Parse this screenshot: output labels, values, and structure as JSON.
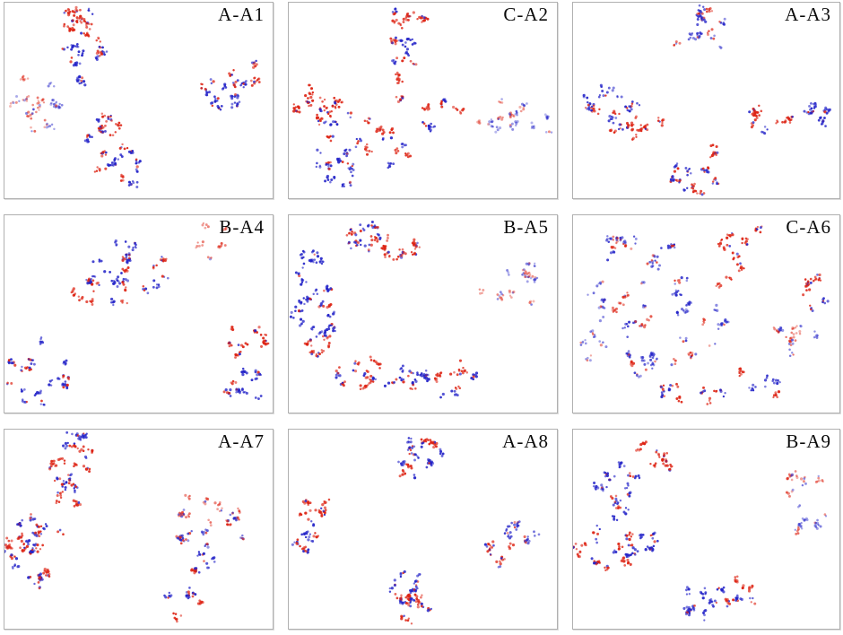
{
  "chart_data": {
    "type": "scatter",
    "title": "",
    "description": "3x3 grid of 2D embedding scatter plots, each panel comparing two point classes (red vs blue); no axes, ticks or legends are shown",
    "layout": {
      "rows": 3,
      "cols": 3,
      "grid": "off",
      "axes": "hidden",
      "legend": "none"
    },
    "colors": {
      "red_points": "#dd2212",
      "blue_points": "#2323c8",
      "panel_border": "#b0b0b0",
      "label_text": "#0a0a0a",
      "background": "#ffffff"
    },
    "point_style": {
      "radius_px": 1.4,
      "default_alpha": [
        0.55,
        0.95
      ]
    },
    "panels": [
      {
        "label": "A-A1",
        "clusters": [
          {
            "x": 0.27,
            "y": 0.08,
            "rx": 0.08,
            "ry": 0.07,
            "red": 48,
            "blue": 16
          },
          {
            "x": 0.29,
            "y": 0.24,
            "rx": 0.09,
            "ry": 0.09,
            "red": 16,
            "blue": 42
          },
          {
            "x": 0.27,
            "y": 0.4,
            "rx": 0.03,
            "ry": 0.05,
            "red": 0,
            "blue": 14
          },
          {
            "x": 0.08,
            "y": 0.52,
            "rx": 0.08,
            "ry": 0.14,
            "red": 34,
            "blue": 6,
            "a": [
              0.3,
              0.6
            ]
          },
          {
            "x": 0.17,
            "y": 0.5,
            "rx": 0.08,
            "ry": 0.14,
            "red": 8,
            "blue": 34,
            "a": [
              0.3,
              0.6
            ]
          },
          {
            "x": 0.36,
            "y": 0.66,
            "rx": 0.09,
            "ry": 0.08,
            "red": 44,
            "blue": 8
          },
          {
            "x": 0.43,
            "y": 0.84,
            "rx": 0.09,
            "ry": 0.11,
            "red": 16,
            "blue": 56
          },
          {
            "x": 0.9,
            "y": 0.36,
            "rx": 0.08,
            "ry": 0.09,
            "red": 36,
            "blue": 6
          },
          {
            "x": 0.8,
            "y": 0.48,
            "rx": 0.08,
            "ry": 0.09,
            "red": 8,
            "blue": 44
          }
        ]
      },
      {
        "label": "C-A2",
        "clusters": [
          {
            "x": 0.44,
            "y": 0.07,
            "rx": 0.07,
            "ry": 0.06,
            "red": 38,
            "blue": 6
          },
          {
            "x": 0.43,
            "y": 0.24,
            "rx": 0.05,
            "ry": 0.11,
            "red": 16,
            "blue": 30
          },
          {
            "x": 0.42,
            "y": 0.44,
            "rx": 0.04,
            "ry": 0.07,
            "red": 12,
            "blue": 10
          },
          {
            "x": 0.08,
            "y": 0.52,
            "rx": 0.06,
            "ry": 0.12,
            "red": 38,
            "blue": 5
          },
          {
            "x": 0.21,
            "y": 0.6,
            "rx": 0.1,
            "ry": 0.12,
            "red": 28,
            "blue": 42
          },
          {
            "x": 0.19,
            "y": 0.83,
            "rx": 0.12,
            "ry": 0.12,
            "red": 12,
            "blue": 52
          },
          {
            "x": 0.37,
            "y": 0.76,
            "rx": 0.08,
            "ry": 0.12,
            "red": 28,
            "blue": 24
          },
          {
            "x": 0.58,
            "y": 0.58,
            "rx": 0.09,
            "ry": 0.09,
            "red": 28,
            "blue": 18
          },
          {
            "x": 0.75,
            "y": 0.6,
            "rx": 0.09,
            "ry": 0.11,
            "red": 22,
            "blue": 16,
            "a": [
              0.3,
              0.55
            ]
          },
          {
            "x": 0.91,
            "y": 0.61,
            "rx": 0.08,
            "ry": 0.12,
            "red": 8,
            "blue": 30,
            "a": [
              0.3,
              0.55
            ]
          }
        ]
      },
      {
        "label": "A-A3",
        "clusters": [
          {
            "x": 0.47,
            "y": 0.13,
            "rx": 0.12,
            "ry": 0.12,
            "red": 38,
            "blue": 38,
            "a": [
              0.45,
              0.8
            ]
          },
          {
            "x": 0.14,
            "y": 0.49,
            "rx": 0.12,
            "ry": 0.09,
            "red": 14,
            "blue": 44
          },
          {
            "x": 0.17,
            "y": 0.63,
            "rx": 0.11,
            "ry": 0.07,
            "red": 40,
            "blue": 10
          },
          {
            "x": 0.3,
            "y": 0.62,
            "rx": 0.04,
            "ry": 0.04,
            "red": 12,
            "blue": 0
          },
          {
            "x": 0.73,
            "y": 0.6,
            "rx": 0.11,
            "ry": 0.06,
            "red": 38,
            "blue": 8
          },
          {
            "x": 0.92,
            "y": 0.57,
            "rx": 0.07,
            "ry": 0.09,
            "red": 6,
            "blue": 36
          },
          {
            "x": 0.52,
            "y": 0.76,
            "rx": 0.04,
            "ry": 0.04,
            "red": 14,
            "blue": 0
          },
          {
            "x": 0.46,
            "y": 0.89,
            "rx": 0.09,
            "ry": 0.09,
            "red": 20,
            "blue": 46
          }
        ]
      },
      {
        "label": "B-A4",
        "clusters": [
          {
            "x": 0.46,
            "y": 0.27,
            "rx": 0.18,
            "ry": 0.18,
            "red": 50,
            "blue": 78
          },
          {
            "x": 0.3,
            "y": 0.4,
            "rx": 0.05,
            "ry": 0.05,
            "red": 16,
            "blue": 2
          },
          {
            "x": 0.78,
            "y": 0.12,
            "rx": 0.07,
            "ry": 0.11,
            "red": 28,
            "blue": 0,
            "a": [
              0.35,
              0.6
            ]
          },
          {
            "x": 0.12,
            "y": 0.79,
            "rx": 0.12,
            "ry": 0.17,
            "red": 38,
            "blue": 48
          },
          {
            "x": 0.91,
            "y": 0.63,
            "rx": 0.09,
            "ry": 0.09,
            "red": 44,
            "blue": 4
          },
          {
            "x": 0.9,
            "y": 0.87,
            "rx": 0.09,
            "ry": 0.11,
            "red": 4,
            "blue": 50
          }
        ]
      },
      {
        "label": "B-A5",
        "clusters": [
          {
            "x": 0.27,
            "y": 0.1,
            "rx": 0.08,
            "ry": 0.08,
            "red": 10,
            "blue": 40
          },
          {
            "x": 0.4,
            "y": 0.18,
            "rx": 0.1,
            "ry": 0.1,
            "red": 44,
            "blue": 12
          },
          {
            "x": 0.08,
            "y": 0.28,
            "rx": 0.07,
            "ry": 0.09,
            "red": 0,
            "blue": 40
          },
          {
            "x": 0.12,
            "y": 0.4,
            "rx": 0.06,
            "ry": 0.06,
            "red": 4,
            "blue": 25
          },
          {
            "x": 0.05,
            "y": 0.48,
            "rx": 0.04,
            "ry": 0.07,
            "red": 2,
            "blue": 25
          },
          {
            "x": 0.15,
            "y": 0.56,
            "rx": 0.06,
            "ry": 0.06,
            "red": 10,
            "blue": 24
          },
          {
            "x": 0.11,
            "y": 0.68,
            "rx": 0.05,
            "ry": 0.08,
            "red": 30,
            "blue": 2
          },
          {
            "x": 0.27,
            "y": 0.8,
            "rx": 0.1,
            "ry": 0.08,
            "red": 40,
            "blue": 16
          },
          {
            "x": 0.45,
            "y": 0.84,
            "rx": 0.09,
            "ry": 0.08,
            "red": 18,
            "blue": 26
          },
          {
            "x": 0.61,
            "y": 0.84,
            "rx": 0.09,
            "ry": 0.1,
            "red": 30,
            "blue": 22
          },
          {
            "x": 0.77,
            "y": 0.42,
            "rx": 0.06,
            "ry": 0.08,
            "red": 18,
            "blue": 2,
            "a": [
              0.3,
              0.55
            ]
          },
          {
            "x": 0.88,
            "y": 0.35,
            "rx": 0.08,
            "ry": 0.12,
            "red": 4,
            "blue": 36,
            "a": [
              0.3,
              0.6
            ]
          }
        ]
      },
      {
        "label": "C-A6",
        "clusters": [
          {
            "x": 0.63,
            "y": 0.15,
            "rx": 0.09,
            "ry": 0.13,
            "red": 48,
            "blue": 2
          },
          {
            "x": 0.56,
            "y": 0.34,
            "rx": 0.03,
            "ry": 0.03,
            "red": 10,
            "blue": 0
          },
          {
            "x": 0.93,
            "y": 0.38,
            "rx": 0.06,
            "ry": 0.11,
            "red": 34,
            "blue": 2
          },
          {
            "x": 0.14,
            "y": 0.22,
            "rx": 0.1,
            "ry": 0.12,
            "red": 8,
            "blue": 30,
            "a": [
              0.4,
              0.9
            ]
          },
          {
            "x": 0.3,
            "y": 0.17,
            "rx": 0.08,
            "ry": 0.1,
            "red": 6,
            "blue": 25,
            "a": [
              0.4,
              0.9
            ]
          },
          {
            "x": 0.1,
            "y": 0.45,
            "rx": 0.09,
            "ry": 0.12,
            "red": 5,
            "blue": 24,
            "a": [
              0.35,
              0.7
            ]
          },
          {
            "x": 0.25,
            "y": 0.45,
            "rx": 0.1,
            "ry": 0.14,
            "red": 8,
            "blue": 30,
            "a": [
              0.4,
              0.9
            ]
          },
          {
            "x": 0.4,
            "y": 0.36,
            "rx": 0.08,
            "ry": 0.14,
            "red": 8,
            "blue": 28,
            "a": [
              0.4,
              0.9
            ]
          },
          {
            "x": 0.07,
            "y": 0.7,
            "rx": 0.06,
            "ry": 0.12,
            "red": 2,
            "blue": 20,
            "a": [
              0.35,
              0.65
            ]
          },
          {
            "x": 0.22,
            "y": 0.72,
            "rx": 0.09,
            "ry": 0.12,
            "red": 8,
            "blue": 25,
            "a": [
              0.4,
              0.9
            ]
          },
          {
            "x": 0.38,
            "y": 0.7,
            "rx": 0.08,
            "ry": 0.12,
            "red": 10,
            "blue": 22,
            "a": [
              0.4,
              0.9
            ]
          },
          {
            "x": 0.52,
            "y": 0.55,
            "rx": 0.06,
            "ry": 0.12,
            "red": 8,
            "blue": 15,
            "a": [
              0.4,
              0.8
            ]
          },
          {
            "x": 0.42,
            "y": 0.9,
            "rx": 0.12,
            "ry": 0.07,
            "red": 15,
            "blue": 20
          },
          {
            "x": 0.6,
            "y": 0.85,
            "rx": 0.08,
            "ry": 0.08,
            "red": 10,
            "blue": 15
          },
          {
            "x": 0.78,
            "y": 0.65,
            "rx": 0.08,
            "ry": 0.1,
            "red": 8,
            "blue": 20,
            "a": [
              0.4,
              0.8
            ]
          },
          {
            "x": 0.72,
            "y": 0.86,
            "rx": 0.06,
            "ry": 0.07,
            "red": 6,
            "blue": 12
          },
          {
            "x": 0.86,
            "y": 0.56,
            "rx": 0.06,
            "ry": 0.08,
            "red": 12,
            "blue": 6,
            "a": [
              0.35,
              0.6
            ]
          }
        ]
      },
      {
        "label": "A-A7",
        "clusters": [
          {
            "x": 0.27,
            "y": 0.1,
            "rx": 0.09,
            "ry": 0.08,
            "red": 10,
            "blue": 40
          },
          {
            "x": 0.24,
            "y": 0.22,
            "rx": 0.09,
            "ry": 0.08,
            "red": 34,
            "blue": 20
          },
          {
            "x": 0.22,
            "y": 0.36,
            "rx": 0.07,
            "ry": 0.04,
            "red": 18,
            "blue": 2
          },
          {
            "x": 0.13,
            "y": 0.48,
            "rx": 0.1,
            "ry": 0.06,
            "red": 10,
            "blue": 30
          },
          {
            "x": 0.11,
            "y": 0.62,
            "rx": 0.12,
            "ry": 0.11,
            "red": 48,
            "blue": 34
          },
          {
            "x": 0.15,
            "y": 0.76,
            "rx": 0.07,
            "ry": 0.06,
            "red": 20,
            "blue": 8
          },
          {
            "x": 0.74,
            "y": 0.4,
            "rx": 0.12,
            "ry": 0.07,
            "red": 28,
            "blue": 10,
            "a": [
              0.4,
              0.7
            ]
          },
          {
            "x": 0.87,
            "y": 0.47,
            "rx": 0.06,
            "ry": 0.1,
            "red": 4,
            "blue": 25,
            "a": [
              0.45,
              0.8
            ]
          },
          {
            "x": 0.72,
            "y": 0.56,
            "rx": 0.08,
            "ry": 0.08,
            "red": 12,
            "blue": 24,
            "a": [
              0.45,
              0.85
            ]
          },
          {
            "x": 0.74,
            "y": 0.7,
            "rx": 0.05,
            "ry": 0.08,
            "red": 4,
            "blue": 24
          },
          {
            "x": 0.67,
            "y": 0.87,
            "rx": 0.07,
            "ry": 0.09,
            "red": 24,
            "blue": 14
          }
        ]
      },
      {
        "label": "A-A8",
        "clusters": [
          {
            "x": 0.48,
            "y": 0.14,
            "rx": 0.09,
            "ry": 0.11,
            "red": 42,
            "blue": 46
          },
          {
            "x": 0.11,
            "y": 0.42,
            "rx": 0.07,
            "ry": 0.08,
            "red": 40,
            "blue": 4
          },
          {
            "x": 0.07,
            "y": 0.56,
            "rx": 0.06,
            "ry": 0.07,
            "red": 4,
            "blue": 34
          },
          {
            "x": 0.88,
            "y": 0.5,
            "rx": 0.07,
            "ry": 0.08,
            "red": 4,
            "blue": 34,
            "a": [
              0.45,
              0.8
            ]
          },
          {
            "x": 0.79,
            "y": 0.62,
            "rx": 0.06,
            "ry": 0.06,
            "red": 28,
            "blue": 4,
            "a": [
              0.5,
              0.85
            ]
          },
          {
            "x": 0.43,
            "y": 0.78,
            "rx": 0.07,
            "ry": 0.08,
            "red": 8,
            "blue": 40
          },
          {
            "x": 0.46,
            "y": 0.9,
            "rx": 0.08,
            "ry": 0.08,
            "red": 36,
            "blue": 14
          }
        ]
      },
      {
        "label": "B-A9",
        "clusters": [
          {
            "x": 0.33,
            "y": 0.12,
            "rx": 0.09,
            "ry": 0.1,
            "red": 40,
            "blue": 2
          },
          {
            "x": 0.16,
            "y": 0.26,
            "rx": 0.1,
            "ry": 0.09,
            "red": 8,
            "blue": 44
          },
          {
            "x": 0.19,
            "y": 0.43,
            "rx": 0.05,
            "ry": 0.07,
            "red": 2,
            "blue": 20
          },
          {
            "x": 0.13,
            "y": 0.6,
            "rx": 0.11,
            "ry": 0.11,
            "red": 40,
            "blue": 28
          },
          {
            "x": 0.03,
            "y": 0.62,
            "rx": 0.03,
            "ry": 0.05,
            "red": 12,
            "blue": 0
          },
          {
            "x": 0.27,
            "y": 0.57,
            "rx": 0.06,
            "ry": 0.08,
            "red": 4,
            "blue": 30
          },
          {
            "x": 0.85,
            "y": 0.27,
            "rx": 0.08,
            "ry": 0.08,
            "red": 30,
            "blue": 2,
            "a": [
              0.35,
              0.6
            ]
          },
          {
            "x": 0.89,
            "y": 0.45,
            "rx": 0.08,
            "ry": 0.09,
            "red": 5,
            "blue": 30,
            "a": [
              0.35,
              0.65
            ]
          },
          {
            "x": 0.46,
            "y": 0.87,
            "rx": 0.08,
            "ry": 0.09,
            "red": 4,
            "blue": 44
          },
          {
            "x": 0.62,
            "y": 0.82,
            "rx": 0.09,
            "ry": 0.08,
            "red": 40,
            "blue": 8
          }
        ]
      }
    ]
  }
}
